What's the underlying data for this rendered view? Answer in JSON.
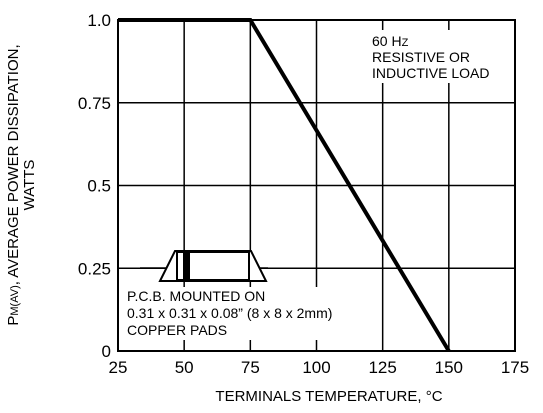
{
  "chart_data": {
    "type": "line",
    "xlabel": "TERMINALS TEMPERATURE, °C",
    "ylabel": {
      "main_prefix": "P",
      "main_subscript": "M(AV)",
      "main_rest": ", AVERAGE POWER DISSIPATION,",
      "second_line": "WATTS"
    },
    "xlim": [
      25,
      175
    ],
    "ylim": [
      0,
      1.0
    ],
    "x_ticks": [
      25,
      50,
      75,
      100,
      125,
      150,
      175
    ],
    "x_tick_labels": [
      "25",
      "50",
      "75",
      "100",
      "125",
      "150",
      "175"
    ],
    "y_ticks": [
      0,
      0.25,
      0.5,
      0.75,
      1.0
    ],
    "y_tick_labels": [
      "0",
      "0.25",
      "0.5",
      "0.75",
      "1.0"
    ],
    "grid": true,
    "series": [
      {
        "x": [
          25,
          75,
          150
        ],
        "y": [
          1.0,
          1.0,
          0
        ]
      }
    ],
    "annotations": {
      "frequency": {
        "main": "60 H",
        "small": "Z"
      },
      "load_line1": "RESISTIVE OR",
      "load_line2": "INDUCTIVE LOAD",
      "pcb_line1": "P.C.B. MOUNTED ON",
      "pcb_line2": "0.31 x 0.31 x 0.08” (8 x 8 x 2mm)",
      "pcb_line3": "COPPER PADS"
    }
  }
}
